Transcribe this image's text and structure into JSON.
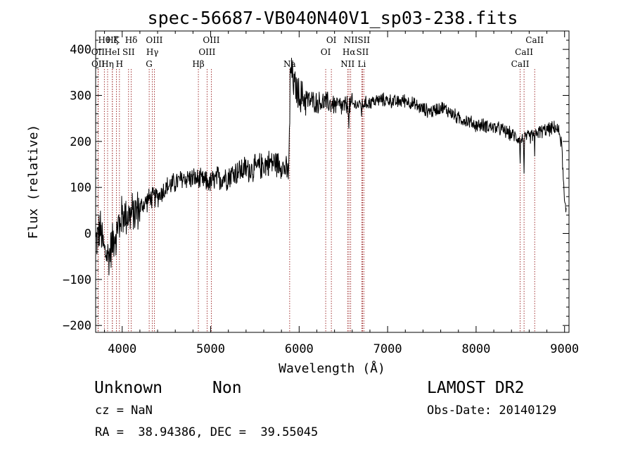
{
  "chart_data": {
    "type": "line",
    "title": "spec-56687-VB040N40V1_sp03-238.fits",
    "xlabel": "Wavelength (Å)",
    "ylabel": "Flux (relative)",
    "xlim": [
      3700,
      9050
    ],
    "ylim": [
      -215,
      440
    ],
    "xticks": [
      4000,
      5000,
      6000,
      7000,
      8000,
      9000
    ],
    "yticks": [
      -200,
      -100,
      0,
      100,
      200,
      300,
      400
    ],
    "xtick_labels": [
      "4000",
      "5000",
      "6000",
      "7000",
      "8000",
      "9000"
    ],
    "ytick_labels": [
      "−200",
      "−100",
      "0",
      "100",
      "200",
      "300",
      "400"
    ],
    "grid": false,
    "line_color": "#000000",
    "marker_line_color": "#8b0000",
    "line_markers": [
      {
        "label": "Hθ",
        "x": 3798,
        "row": 0
      },
      {
        "label": "OII",
        "x": 3727,
        "row": 1
      },
      {
        "label": "OII",
        "x": 3729,
        "row": 2
      },
      {
        "label": "Hη",
        "x": 3835,
        "row": 2
      },
      {
        "label": "Hζ",
        "x": 3889,
        "row": 0
      },
      {
        "label": "HeI",
        "x": 3889,
        "row": 1
      },
      {
        "label": "K",
        "x": 3934,
        "row": 0
      },
      {
        "label": "H",
        "x": 3969,
        "row": 2
      },
      {
        "label": "SII",
        "x": 4072,
        "row": 1
      },
      {
        "label": "Hδ",
        "x": 4102,
        "row": 0
      },
      {
        "label": "G",
        "x": 4305,
        "row": 2
      },
      {
        "label": "Hγ",
        "x": 4341,
        "row": 1
      },
      {
        "label": "OIII",
        "x": 4363,
        "row": 0
      },
      {
        "label": "Hβ",
        "x": 4861,
        "row": 2
      },
      {
        "label": "OIII",
        "x": 4959,
        "row": 1
      },
      {
        "label": "OIII",
        "x": 5007,
        "row": 0
      },
      {
        "label": "Na",
        "x": 5893,
        "row": 2
      },
      {
        "label": "OI",
        "x": 6300,
        "row": 1
      },
      {
        "label": "OI",
        "x": 6364,
        "row": 0
      },
      {
        "label": "NII",
        "x": 6548,
        "row": 2
      },
      {
        "label": "Hα",
        "x": 6563,
        "row": 1
      },
      {
        "label": "NII",
        "x": 6583,
        "row": 0
      },
      {
        "label": "Li",
        "x": 6708,
        "row": 2
      },
      {
        "label": "SII",
        "x": 6716,
        "row": 1
      },
      {
        "label": "SII",
        "x": 6731,
        "row": 0
      },
      {
        "label": "CaII",
        "x": 8498,
        "row": 2
      },
      {
        "label": "CaII",
        "x": 8542,
        "row": 1
      },
      {
        "label": "CaII",
        "x": 8662,
        "row": 0
      }
    ],
    "continuum": {
      "x": [
        3700,
        3750,
        3800,
        3850,
        3900,
        3950,
        4000,
        4100,
        4200,
        4300,
        4400,
        4500,
        4600,
        4700,
        4800,
        4900,
        5000,
        5100,
        5200,
        5300,
        5400,
        5500,
        5600,
        5700,
        5800,
        5880,
        5900,
        5950,
        6000,
        6100,
        6200,
        6300,
        6400,
        6500,
        6600,
        6700,
        6800,
        6900,
        7000,
        7100,
        7200,
        7300,
        7400,
        7500,
        7600,
        7700,
        7800,
        7900,
        8000,
        8100,
        8200,
        8300,
        8400,
        8500,
        8600,
        8700,
        8800,
        8900,
        8950,
        8970,
        9000,
        9020
      ],
      "y": [
        -20,
        10,
        -40,
        -50,
        -10,
        20,
        40,
        40,
        55,
        75,
        80,
        100,
        110,
        120,
        120,
        115,
        110,
        120,
        125,
        135,
        140,
        140,
        150,
        155,
        150,
        130,
        360,
        320,
        300,
        290,
        285,
        285,
        280,
        275,
        280,
        280,
        285,
        290,
        290,
        285,
        290,
        280,
        270,
        265,
        275,
        265,
        250,
        245,
        235,
        235,
        230,
        225,
        215,
        205,
        210,
        220,
        225,
        230,
        215,
        185,
        60,
        50
      ]
    }
  },
  "footer": {
    "object_class": "Unknown",
    "object_subclass": "Non",
    "survey": "LAMOST DR2",
    "cz": "cz = NaN",
    "obs_date": "Obs-Date: 20140129",
    "coords": "RA =  38.94386, DEC =  39.55045"
  }
}
